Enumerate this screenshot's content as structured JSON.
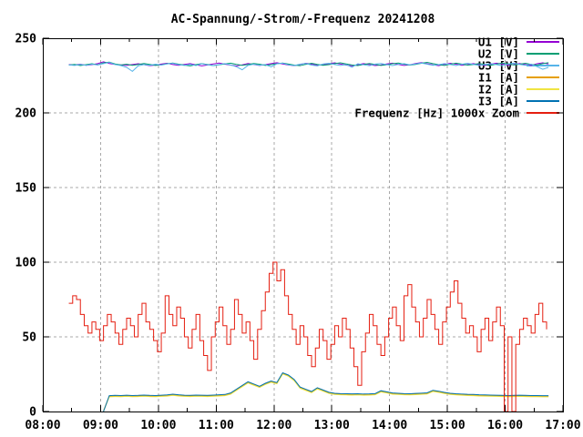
{
  "window": {
    "background": "#ffffff"
  },
  "chart_data": {
    "type": "line",
    "title": "AC-Spannung/-Strom/-Frequenz 20241208",
    "xlabel": "",
    "ylabel": "",
    "x_range_hours": [
      8,
      17
    ],
    "x_ticks": [
      "08:00",
      "09:00",
      "10:00",
      "11:00",
      "12:00",
      "13:00",
      "14:00",
      "15:00",
      "16:00",
      "17:00"
    ],
    "x_minor_tick_every_hours": 0.5,
    "ylim": [
      0,
      250
    ],
    "y_ticks": [
      0,
      50,
      100,
      150,
      200,
      250
    ],
    "grid": true,
    "grid_color": "#a8a8a8",
    "legend_position": "top-right-inside",
    "series": [
      {
        "name": "U1 [V]",
        "color": "#9400d3",
        "style": "lines",
        "start_h": 8.45,
        "step_min": 6,
        "values": [
          232.4,
          232.1,
          232.6,
          231.9,
          232.3,
          233.0,
          234.2,
          233.1,
          232.5,
          232.2,
          231.8,
          232.4,
          232.9,
          232.3,
          231.6,
          232.0,
          232.7,
          233.2,
          232.4,
          231.9,
          232.5,
          233.0,
          232.2,
          231.5,
          232.1,
          232.8,
          233.4,
          232.6,
          232.0,
          231.4,
          232.2,
          233.1,
          232.5,
          231.8,
          232.3,
          233.0,
          233.6,
          232.8,
          232.1,
          231.6,
          232.4,
          233.2,
          232.6,
          231.9,
          232.2,
          232.9,
          233.5,
          232.7,
          232.0,
          231.5,
          232.3,
          233.0,
          232.4,
          231.7,
          232.1,
          232.8,
          233.3,
          232.5,
          231.8,
          232.2,
          233.1,
          233.7,
          232.9,
          232.2,
          231.6,
          232.5,
          233.2,
          232.6,
          231.9,
          232.4,
          233.0,
          232.3,
          231.7,
          232.6,
          233.3,
          232.7,
          232.0,
          232.5,
          233.1,
          232.4,
          231.8,
          232.9,
          233.5,
          232.8
        ]
      },
      {
        "name": "U2 [V]",
        "color": "#009e73",
        "style": "lines",
        "start_h": 8.45,
        "step_min": 6,
        "values": [
          232.0,
          232.5,
          231.7,
          232.3,
          232.9,
          232.2,
          233.5,
          234.0,
          232.8,
          232.1,
          232.6,
          231.9,
          232.4,
          233.1,
          232.5,
          231.8,
          232.2,
          232.9,
          233.4,
          232.6,
          232.0,
          231.5,
          232.3,
          233.0,
          232.4,
          231.7,
          232.2,
          232.8,
          233.3,
          232.5,
          231.9,
          232.4,
          233.1,
          232.6,
          231.8,
          232.3,
          232.9,
          233.4,
          232.7,
          232.0,
          231.6,
          232.5,
          233.2,
          232.5,
          231.9,
          232.3,
          233.0,
          233.5,
          232.8,
          232.1,
          231.7,
          232.4,
          233.1,
          232.5,
          231.8,
          232.2,
          232.9,
          233.4,
          232.6,
          232.0,
          232.5,
          233.2,
          233.8,
          233.0,
          232.3,
          231.8,
          232.6,
          233.3,
          232.7,
          232.0,
          232.4,
          233.1,
          232.5,
          231.9,
          232.7,
          233.4,
          232.8,
          232.1,
          232.6,
          233.2,
          232.5,
          232.0,
          233.0,
          233.6
        ]
      },
      {
        "name": "U3 [V]",
        "color": "#56b4e9",
        "style": "lines",
        "start_h": 8.45,
        "step_min": 6,
        "values": [
          232.2,
          231.8,
          232.5,
          231.9,
          232.6,
          232.1,
          233.0,
          233.8,
          232.4,
          231.7,
          230.5,
          227.8,
          231.5,
          232.4,
          231.9,
          232.6,
          232.0,
          232.8,
          233.2,
          232.3,
          231.8,
          232.5,
          231.7,
          232.9,
          232.2,
          231.6,
          232.4,
          233.0,
          232.1,
          230.9,
          228.9,
          231.8,
          232.6,
          231.9,
          232.4,
          230.8,
          232.9,
          233.3,
          232.2,
          231.7,
          232.6,
          233.1,
          232.0,
          231.5,
          232.8,
          233.2,
          232.4,
          231.8,
          232.3,
          230.6,
          232.9,
          232.2,
          231.6,
          232.7,
          233.1,
          232.3,
          231.7,
          232.5,
          233.0,
          232.2,
          232.8,
          233.4,
          232.6,
          231.9,
          232.3,
          233.0,
          232.4,
          231.7,
          232.6,
          233.2,
          232.5,
          231.8,
          232.4,
          233.0,
          232.3,
          231.6,
          232.8,
          233.3,
          232.5,
          231.9,
          232.7,
          231.0,
          229.2,
          230.5
        ]
      },
      {
        "name": "I1 [A]",
        "color": "#e69f00",
        "style": "lines",
        "start_h": 9.05,
        "step_min": 6,
        "values": [
          0.5,
          10.2,
          10.4,
          10.3,
          10.5,
          10.3,
          10.4,
          10.6,
          10.4,
          10.3,
          10.5,
          10.7,
          11.2,
          10.8,
          10.5,
          10.4,
          10.6,
          10.5,
          10.4,
          10.6,
          10.8,
          11.0,
          12.0,
          14.5,
          17.0,
          19.5,
          18.0,
          16.5,
          18.5,
          20.0,
          19.0,
          25.5,
          24.0,
          21.0,
          16.0,
          14.5,
          13.0,
          15.5,
          14.0,
          12.5,
          11.8,
          11.6,
          11.5,
          11.4,
          11.5,
          11.3,
          11.4,
          11.6,
          13.5,
          12.8,
          12.0,
          11.8,
          11.6,
          11.5,
          11.7,
          11.9,
          12.1,
          13.8,
          13.2,
          12.4,
          11.8,
          11.5,
          11.3,
          11.1,
          11.0,
          10.8,
          10.7,
          10.6,
          10.5,
          10.4,
          10.3,
          10.4,
          10.5,
          10.4,
          10.3,
          10.3,
          10.2,
          10.2
        ]
      },
      {
        "name": "I2 [A]",
        "color": "#f0e442",
        "style": "lines",
        "start_h": 9.05,
        "step_min": 6,
        "values": [
          0.3,
          9.8,
          10.0,
          9.9,
          10.1,
          9.9,
          10.0,
          10.2,
          10.0,
          9.9,
          10.1,
          10.3,
          10.8,
          10.4,
          10.1,
          10.0,
          10.2,
          10.1,
          10.0,
          10.2,
          10.4,
          10.6,
          11.6,
          14.1,
          16.6,
          19.1,
          17.6,
          16.1,
          18.1,
          19.6,
          18.6,
          25.1,
          23.6,
          20.6,
          15.6,
          14.1,
          12.6,
          15.1,
          13.6,
          12.1,
          11.4,
          11.2,
          11.1,
          11.0,
          11.1,
          10.9,
          11.0,
          11.2,
          13.1,
          12.4,
          11.6,
          11.4,
          11.2,
          11.1,
          11.3,
          11.5,
          11.7,
          13.4,
          12.8,
          12.0,
          11.4,
          11.1,
          10.9,
          10.7,
          10.6,
          10.4,
          10.3,
          10.2,
          10.1,
          10.0,
          9.9,
          10.0,
          10.1,
          10.0,
          9.9,
          9.9,
          9.8,
          9.8
        ]
      },
      {
        "name": "I3 [A]",
        "color": "#0072b2",
        "style": "lines",
        "start_h": 9.05,
        "step_min": 6,
        "values": [
          0.0,
          10.6,
          10.8,
          10.7,
          10.9,
          10.7,
          10.8,
          11.0,
          10.8,
          10.7,
          10.9,
          11.1,
          11.6,
          11.2,
          10.9,
          10.8,
          11.0,
          10.9,
          10.8,
          11.0,
          11.2,
          11.4,
          12.4,
          14.9,
          17.4,
          19.9,
          18.4,
          16.9,
          18.9,
          20.4,
          19.4,
          25.9,
          24.4,
          21.4,
          16.4,
          14.9,
          13.4,
          15.9,
          14.4,
          12.9,
          12.2,
          12.0,
          11.9,
          11.8,
          11.9,
          11.7,
          11.8,
          12.0,
          13.9,
          13.2,
          12.4,
          12.2,
          12.0,
          11.9,
          12.1,
          12.3,
          12.5,
          14.2,
          13.6,
          12.8,
          12.2,
          11.9,
          11.7,
          11.5,
          11.4,
          11.2,
          11.1,
          11.0,
          10.9,
          10.8,
          10.7,
          10.8,
          10.9,
          10.8,
          10.7,
          10.7,
          10.6,
          10.6
        ]
      },
      {
        "name": "Frequenz [Hz] 1000x Zoom",
        "color": "#e51e10",
        "style": "steps",
        "start_h": 8.45,
        "step_min": 4,
        "values": [
          72.5,
          77.5,
          75,
          65,
          57.5,
          52.5,
          60,
          55,
          47.5,
          57.5,
          65,
          60,
          52.5,
          45,
          55,
          62.5,
          57.5,
          50,
          65,
          72.5,
          60,
          55,
          47.5,
          40,
          52.5,
          77.5,
          65,
          57.5,
          70,
          62.5,
          50,
          42.5,
          55,
          65,
          47.5,
          37.5,
          27.5,
          50,
          60,
          70,
          57.5,
          45,
          55,
          75,
          65,
          52.5,
          60,
          47.5,
          35,
          55,
          67.5,
          80,
          92.5,
          100,
          87.5,
          95,
          77.5,
          65,
          55,
          45,
          57.5,
          50,
          37.5,
          30,
          42.5,
          55,
          47.5,
          35,
          45,
          57.5,
          50,
          62.5,
          55,
          42.5,
          30,
          17.5,
          40,
          52.5,
          65,
          57.5,
          45,
          37.5,
          50,
          62.5,
          70,
          57.5,
          47.5,
          77.5,
          85,
          70,
          60,
          50,
          62.5,
          75,
          65,
          55,
          45,
          60,
          70,
          80,
          87.5,
          72.5,
          62.5,
          52.5,
          57.5,
          50,
          40,
          55,
          62.5,
          47.5,
          60,
          70,
          57.5,
          0,
          50,
          0,
          45,
          55,
          62.5,
          57.5,
          52.5,
          65,
          72.5,
          60,
          55
        ]
      }
    ]
  }
}
